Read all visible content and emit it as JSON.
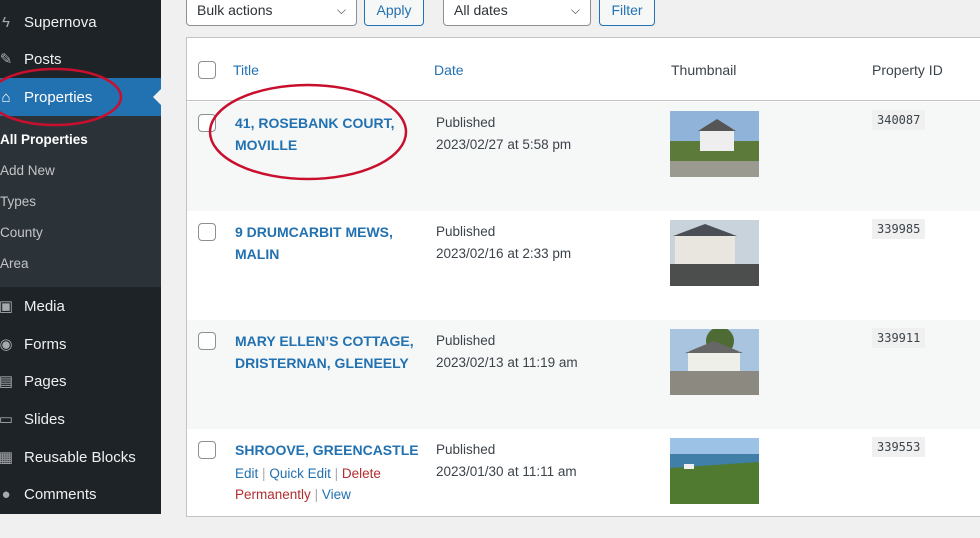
{
  "sidebar": {
    "items": [
      {
        "label": "Supernova",
        "icon": "bolt-icon"
      },
      {
        "label": "Posts",
        "icon": "pin-icon"
      },
      {
        "label": "Properties",
        "icon": "home-icon"
      },
      {
        "label": "Media",
        "icon": "media-icon"
      },
      {
        "label": "Forms",
        "icon": "forms-icon"
      },
      {
        "label": "Pages",
        "icon": "pages-icon"
      },
      {
        "label": "Slides",
        "icon": "slides-icon"
      },
      {
        "label": "Reusable Blocks",
        "icon": "blocks-icon"
      },
      {
        "label": "Comments",
        "icon": "comment-icon"
      }
    ],
    "submenu": [
      "All Properties",
      "Add New",
      "Types",
      "County",
      "Area"
    ]
  },
  "toolbar": {
    "bulk": "Bulk actions",
    "apply": "Apply",
    "dates": "All dates",
    "filter": "Filter"
  },
  "table": {
    "headers": {
      "title": "Title",
      "date": "Date",
      "thumbnail": "Thumbnail",
      "property_id": "Property ID"
    },
    "rows": [
      {
        "title": "41, ROSEBANK COURT, MOVILLE",
        "status": "Published",
        "date": "2023/02/27 at 5:58 pm",
        "id": "340087"
      },
      {
        "title": "9 DRUMCARBIT MEWS, MALIN",
        "status": "Published",
        "date": "2023/02/16 at 2:33 pm",
        "id": "339985"
      },
      {
        "title": "MARY ELLEN’S COTTAGE, DRISTERNAN, GLENEELY",
        "status": "Published",
        "date": "2023/02/13 at 11:19 am",
        "id": "339911"
      },
      {
        "title": "SHROOVE, GREENCASTLE",
        "status": "Published",
        "date": "2023/01/30 at 11:11 am",
        "id": "339553"
      }
    ],
    "row_actions": {
      "edit": "Edit",
      "quick_edit": "Quick Edit",
      "delete": "Delete Permanently",
      "view": "View"
    }
  },
  "colors": {
    "accent": "#2271b1",
    "sidebar": "#1d2327",
    "annotation": "#c8102e"
  }
}
